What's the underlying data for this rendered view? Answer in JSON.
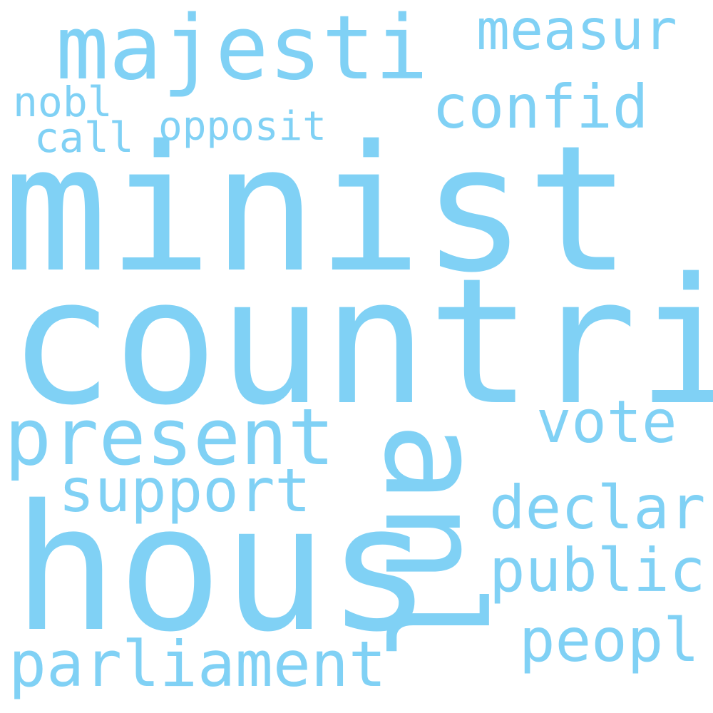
{
  "word_color": "#80d1f5",
  "background_color": "#ffffff",
  "words": {
    "minist": "minist",
    "countri": "countri",
    "hous": "hous",
    "anl": "anl",
    "majesti": "majesti",
    "present": "present",
    "parliament": "parliament",
    "measur": "measur",
    "confid": "confid",
    "support": "support",
    "vote": "vote",
    "declar": "declar",
    "public": "public",
    "peopl": "peopl",
    "opposit": "opposit",
    "nobl": "nobl",
    "call": "call"
  }
}
